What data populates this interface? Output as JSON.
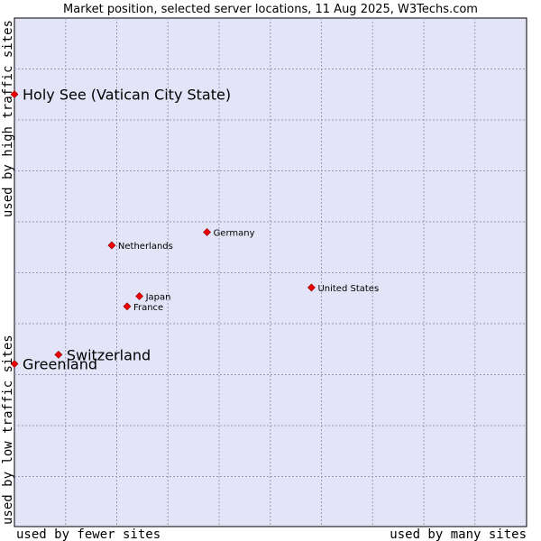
{
  "chart_data": {
    "type": "scatter",
    "title": "Market position, selected server locations, 11 Aug 2025, W3Techs.com",
    "xlabel_left": "used by fewer sites",
    "xlabel_right": "used by many sites",
    "ylabel_bottom": "used by low traffic sites",
    "ylabel_top": "used by high traffic sites",
    "xlim": [
      0,
      100
    ],
    "ylim": [
      0,
      100
    ],
    "grid": true,
    "point_color": "#ee0000",
    "plot_background": "#e4e4f8",
    "points": [
      {
        "name": "Holy See (Vatican City State)",
        "x": 0,
        "y": 85,
        "highlight": true
      },
      {
        "name": "Germany",
        "x": 37.6,
        "y": 57.9,
        "highlight": false
      },
      {
        "name": "Netherlands",
        "x": 19.0,
        "y": 55.3,
        "highlight": false
      },
      {
        "name": "United States",
        "x": 58.0,
        "y": 47.0,
        "highlight": false
      },
      {
        "name": "Japan",
        "x": 24.4,
        "y": 45.3,
        "highlight": false
      },
      {
        "name": "France",
        "x": 22.0,
        "y": 43.3,
        "highlight": false
      },
      {
        "name": "Switzerland",
        "x": 8.6,
        "y": 33.8,
        "highlight": true
      },
      {
        "name": "Greenland",
        "x": 0,
        "y": 32.0,
        "highlight": true
      }
    ]
  }
}
